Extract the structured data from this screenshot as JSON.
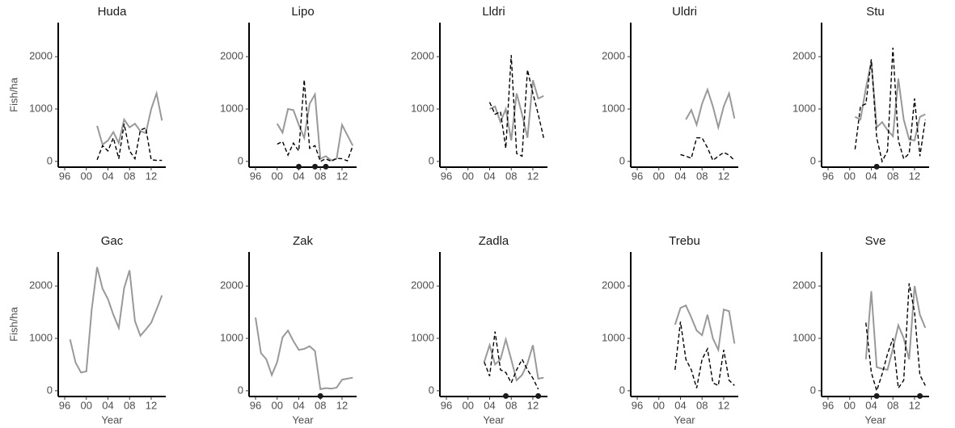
{
  "chart_data": [
    {
      "type": "line",
      "title": "Huda",
      "y_label": "Fish/ha",
      "x": [
        1996,
        1997,
        1998,
        1999,
        2000,
        2001,
        2002,
        2003,
        2004,
        2005,
        2006,
        2007,
        2008,
        2009,
        2010,
        2011,
        2012,
        2013,
        2014
      ],
      "xlim": [
        1994.8,
        2014.7
      ],
      "ylim": [
        -110,
        2650
      ],
      "xticks": [
        {
          "value": 1996,
          "label": "96"
        },
        {
          "value": 2000,
          "label": "00"
        },
        {
          "value": 2004,
          "label": "04"
        },
        {
          "value": 2008,
          "label": "08"
        },
        {
          "value": 2012,
          "label": "12"
        }
      ],
      "yticks": [
        0,
        1000,
        2000
      ],
      "series": [
        {
          "color": "#999999",
          "dash": false,
          "values": [
            null,
            null,
            null,
            null,
            null,
            null,
            680,
            320,
            400,
            560,
            350,
            800,
            650,
            720,
            580,
            540,
            1000,
            1300,
            780
          ]
        },
        {
          "color": "#000000",
          "dash": true,
          "values": [
            null,
            null,
            null,
            null,
            null,
            null,
            30,
            300,
            200,
            450,
            50,
            720,
            200,
            50,
            600,
            640,
            30,
            20,
            20
          ]
        }
      ]
    },
    {
      "type": "line",
      "title": "Lipo",
      "x": [
        1996,
        1997,
        1998,
        1999,
        2000,
        2001,
        2002,
        2003,
        2004,
        2005,
        2006,
        2007,
        2008,
        2009,
        2010,
        2011,
        2012,
        2013,
        2014
      ],
      "xlim": [
        1994.8,
        2014.7
      ],
      "ylim": [
        -110,
        2650
      ],
      "xticks": [
        {
          "value": 1996,
          "label": "96"
        },
        {
          "value": 2000,
          "label": "00"
        },
        {
          "value": 2004,
          "label": "04"
        },
        {
          "value": 2008,
          "label": "08"
        },
        {
          "value": 2012,
          "label": "12"
        }
      ],
      "yticks": [
        0,
        1000,
        2000
      ],
      "series": [
        {
          "color": "#999999",
          "dash": false,
          "values": [
            null,
            null,
            null,
            null,
            720,
            550,
            1000,
            980,
            700,
            450,
            1100,
            1280,
            50,
            100,
            20,
            50,
            700,
            500,
            300
          ]
        },
        {
          "color": "#000000",
          "dash": true,
          "values": [
            null,
            null,
            null,
            null,
            330,
            380,
            120,
            350,
            200,
            1560,
            250,
            300,
            0,
            50,
            0,
            60,
            50,
            10,
            300
          ]
        }
      ],
      "markers": {
        "x": [
          2004,
          2007,
          2009
        ],
        "values": [
          -100,
          -100,
          -100
        ]
      }
    },
    {
      "type": "line",
      "title": "Lldri",
      "x": [
        1996,
        1997,
        1998,
        1999,
        2000,
        2001,
        2002,
        2003,
        2004,
        2005,
        2006,
        2007,
        2008,
        2009,
        2010,
        2011,
        2012,
        2013,
        2014
      ],
      "xlim": [
        1994.8,
        2014.7
      ],
      "ylim": [
        -110,
        2650
      ],
      "xticks": [
        {
          "value": 1996,
          "label": "96"
        },
        {
          "value": 2000,
          "label": "00"
        },
        {
          "value": 2004,
          "label": "04"
        },
        {
          "value": 2008,
          "label": "08"
        },
        {
          "value": 2012,
          "label": "12"
        }
      ],
      "yticks": [
        0,
        1000,
        2000
      ],
      "series": [
        {
          "color": "#999999",
          "dash": false,
          "values": [
            null,
            null,
            null,
            null,
            null,
            null,
            null,
            null,
            1000,
            1050,
            750,
            1000,
            400,
            1300,
            900,
            450,
            1550,
            1200,
            1250
          ]
        },
        {
          "color": "#000000",
          "dash": true,
          "values": [
            null,
            null,
            null,
            null,
            null,
            null,
            null,
            null,
            1130,
            900,
            950,
            250,
            2030,
            150,
            100,
            1750,
            1300,
            900,
            450
          ]
        }
      ]
    },
    {
      "type": "line",
      "title": "Uldri",
      "x": [
        1996,
        1997,
        1998,
        1999,
        2000,
        2001,
        2002,
        2003,
        2004,
        2005,
        2006,
        2007,
        2008,
        2009,
        2010,
        2011,
        2012,
        2013,
        2014
      ],
      "xlim": [
        1994.8,
        2014.7
      ],
      "ylim": [
        -110,
        2650
      ],
      "xticks": [
        {
          "value": 1996,
          "label": "96"
        },
        {
          "value": 2000,
          "label": "00"
        },
        {
          "value": 2004,
          "label": "04"
        },
        {
          "value": 2008,
          "label": "08"
        },
        {
          "value": 2012,
          "label": "12"
        }
      ],
      "yticks": [
        0,
        1000,
        2000
      ],
      "series": [
        {
          "color": "#999999",
          "dash": false,
          "values": [
            null,
            null,
            null,
            null,
            null,
            null,
            null,
            null,
            null,
            800,
            980,
            700,
            1100,
            1370,
            1050,
            650,
            1050,
            1300,
            820
          ]
        },
        {
          "color": "#000000",
          "dash": true,
          "values": [
            null,
            null,
            null,
            null,
            null,
            null,
            null,
            null,
            130,
            100,
            60,
            450,
            450,
            260,
            20,
            100,
            170,
            120,
            20
          ]
        }
      ]
    },
    {
      "type": "line",
      "title": "Stu",
      "x": [
        1996,
        1997,
        1998,
        1999,
        2000,
        2001,
        2002,
        2003,
        2004,
        2005,
        2006,
        2007,
        2008,
        2009,
        2010,
        2011,
        2012,
        2013,
        2014
      ],
      "xlim": [
        1994.8,
        2014.7
      ],
      "ylim": [
        -110,
        2650
      ],
      "xticks": [
        {
          "value": 1996,
          "label": "96"
        },
        {
          "value": 2000,
          "label": "00"
        },
        {
          "value": 2004,
          "label": "04"
        },
        {
          "value": 2008,
          "label": "08"
        },
        {
          "value": 2012,
          "label": "12"
        }
      ],
      "yticks": [
        0,
        1000,
        2000
      ],
      "series": [
        {
          "color": "#999999",
          "dash": false,
          "values": [
            null,
            null,
            null,
            null,
            null,
            850,
            800,
            1400,
            1900,
            650,
            750,
            600,
            480,
            1580,
            800,
            420,
            400,
            850,
            900
          ]
        },
        {
          "color": "#000000",
          "dash": true,
          "values": [
            null,
            null,
            null,
            null,
            null,
            230,
            1050,
            1100,
            1950,
            450,
            0,
            200,
            2170,
            400,
            50,
            150,
            1200,
            100,
            800
          ]
        }
      ],
      "markers": {
        "x": [
          2005
        ],
        "values": [
          -100
        ]
      }
    },
    {
      "type": "line",
      "title": "Gac",
      "y_label": "Fish/ha",
      "x_label": "Year",
      "x": [
        1996,
        1997,
        1998,
        1999,
        2000,
        2001,
        2002,
        2003,
        2004,
        2005,
        2006,
        2007,
        2008,
        2009,
        2010,
        2011,
        2012,
        2013,
        2014
      ],
      "xlim": [
        1994.8,
        2014.7
      ],
      "ylim": [
        -110,
        2650
      ],
      "xticks": [
        {
          "value": 1996,
          "label": "96"
        },
        {
          "value": 2000,
          "label": "00"
        },
        {
          "value": 2004,
          "label": "04"
        },
        {
          "value": 2008,
          "label": "08"
        },
        {
          "value": 2012,
          "label": "12"
        }
      ],
      "yticks": [
        0,
        1000,
        2000
      ],
      "series": [
        {
          "color": "#999999",
          "dash": false,
          "values": [
            null,
            980,
            540,
            350,
            370,
            1550,
            2360,
            1950,
            1750,
            1450,
            1200,
            1960,
            2300,
            1330,
            1050,
            1170,
            1300,
            1550,
            1820
          ]
        }
      ]
    },
    {
      "type": "line",
      "title": "Zak",
      "x_label": "Year",
      "x": [
        1996,
        1997,
        1998,
        1999,
        2000,
        2001,
        2002,
        2003,
        2004,
        2005,
        2006,
        2007,
        2008,
        2009,
        2010,
        2011,
        2012,
        2013,
        2014
      ],
      "xlim": [
        1994.8,
        2014.7
      ],
      "ylim": [
        -110,
        2650
      ],
      "xticks": [
        {
          "value": 1996,
          "label": "96"
        },
        {
          "value": 2000,
          "label": "00"
        },
        {
          "value": 2004,
          "label": "04"
        },
        {
          "value": 2008,
          "label": "08"
        },
        {
          "value": 2012,
          "label": "12"
        }
      ],
      "yticks": [
        0,
        1000,
        2000
      ],
      "series": [
        {
          "color": "#999999",
          "dash": false,
          "values": [
            1400,
            720,
            600,
            300,
            550,
            1020,
            1150,
            950,
            780,
            800,
            850,
            760,
            30,
            50,
            40,
            60,
            210,
            230,
            250
          ]
        }
      ],
      "markers": {
        "x": [
          2008
        ],
        "values": [
          -100
        ]
      }
    },
    {
      "type": "line",
      "title": "Zadla",
      "x_label": "Year",
      "x": [
        1996,
        1997,
        1998,
        1999,
        2000,
        2001,
        2002,
        2003,
        2004,
        2005,
        2006,
        2007,
        2008,
        2009,
        2010,
        2011,
        2012,
        2013,
        2014
      ],
      "xlim": [
        1994.8,
        2014.7
      ],
      "ylim": [
        -110,
        2650
      ],
      "xticks": [
        {
          "value": 1996,
          "label": "96"
        },
        {
          "value": 2000,
          "label": "00"
        },
        {
          "value": 2004,
          "label": "04"
        },
        {
          "value": 2008,
          "label": "08"
        },
        {
          "value": 2012,
          "label": "12"
        }
      ],
      "yticks": [
        0,
        1000,
        2000
      ],
      "series": [
        {
          "color": "#999999",
          "dash": false,
          "values": [
            null,
            null,
            null,
            null,
            null,
            null,
            null,
            550,
            870,
            500,
            600,
            980,
            600,
            200,
            300,
            520,
            870,
            230,
            250
          ]
        },
        {
          "color": "#000000",
          "dash": true,
          "values": [
            null,
            null,
            null,
            null,
            null,
            null,
            null,
            550,
            280,
            1130,
            400,
            350,
            150,
            400,
            600,
            400,
            240,
            30,
            null
          ]
        }
      ],
      "markers": {
        "x": [
          2007,
          2013
        ],
        "values": [
          -100,
          -100
        ]
      }
    },
    {
      "type": "line",
      "title": "Trebu",
      "x_label": "Year",
      "x": [
        1996,
        1997,
        1998,
        1999,
        2000,
        2001,
        2002,
        2003,
        2004,
        2005,
        2006,
        2007,
        2008,
        2009,
        2010,
        2011,
        2012,
        2013,
        2014
      ],
      "xlim": [
        1994.8,
        2014.7
      ],
      "ylim": [
        -110,
        2650
      ],
      "xticks": [
        {
          "value": 1996,
          "label": "96"
        },
        {
          "value": 2000,
          "label": "00"
        },
        {
          "value": 2004,
          "label": "04"
        },
        {
          "value": 2008,
          "label": "08"
        },
        {
          "value": 2012,
          "label": "12"
        }
      ],
      "yticks": [
        0,
        1000,
        2000
      ],
      "series": [
        {
          "color": "#999999",
          "dash": false,
          "values": [
            null,
            null,
            null,
            null,
            null,
            null,
            null,
            1260,
            1580,
            1630,
            1400,
            1150,
            1060,
            1450,
            1000,
            780,
            1550,
            1520,
            900
          ]
        },
        {
          "color": "#000000",
          "dash": true,
          "values": [
            null,
            null,
            null,
            null,
            null,
            null,
            null,
            400,
            1320,
            600,
            400,
            50,
            600,
            800,
            150,
            100,
            780,
            200,
            100
          ]
        }
      ]
    },
    {
      "type": "line",
      "title": "Sve",
      "x_label": "Year",
      "x": [
        1996,
        1997,
        1998,
        1999,
        2000,
        2001,
        2002,
        2003,
        2004,
        2005,
        2006,
        2007,
        2008,
        2009,
        2010,
        2011,
        2012,
        2013,
        2014
      ],
      "xlim": [
        1994.8,
        2014.7
      ],
      "ylim": [
        -110,
        2650
      ],
      "xticks": [
        {
          "value": 1996,
          "label": "96"
        },
        {
          "value": 2000,
          "label": "00"
        },
        {
          "value": 2004,
          "label": "04"
        },
        {
          "value": 2008,
          "label": "08"
        },
        {
          "value": 2012,
          "label": "12"
        }
      ],
      "yticks": [
        0,
        1000,
        2000
      ],
      "series": [
        {
          "color": "#999999",
          "dash": false,
          "values": [
            null,
            null,
            null,
            null,
            null,
            null,
            null,
            600,
            1900,
            450,
            420,
            400,
            800,
            1250,
            1000,
            600,
            2000,
            1450,
            1200
          ]
        },
        {
          "color": "#000000",
          "dash": true,
          "values": [
            null,
            null,
            null,
            null,
            null,
            null,
            null,
            1300,
            350,
            0,
            320,
            700,
            1000,
            50,
            200,
            2050,
            1500,
            300,
            100
          ]
        }
      ],
      "markers": {
        "x": [
          2005,
          2013
        ],
        "values": [
          -100,
          -100
        ]
      }
    }
  ]
}
